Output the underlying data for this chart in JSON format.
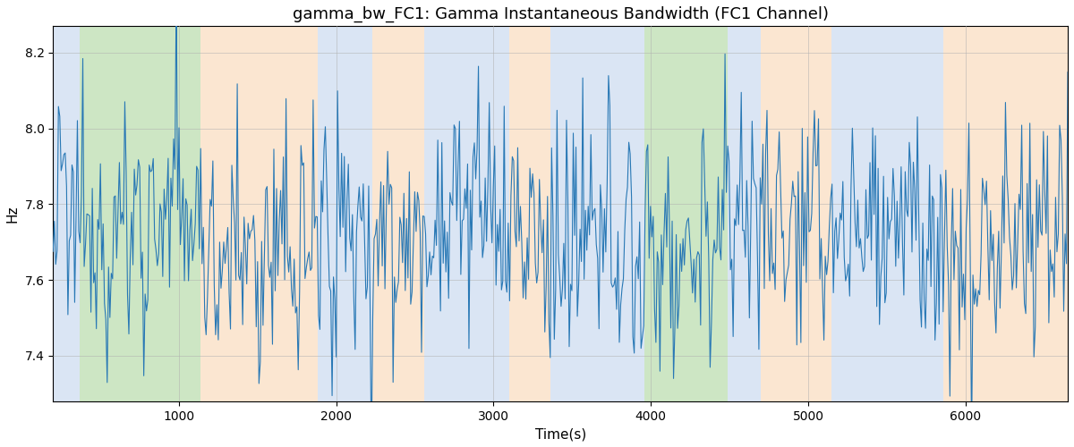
{
  "title": "gamma_bw_FC1: Gamma Instantaneous Bandwidth (FC1 Channel)",
  "xlabel": "Time(s)",
  "ylabel": "Hz",
  "ylim": [
    7.28,
    8.27
  ],
  "xlim": [
    200,
    6650
  ],
  "line_color": "#2878b5",
  "line_width": 0.8,
  "bg_bands": [
    {
      "xstart": 200,
      "xend": 370,
      "color": "#aec6e8",
      "alpha": 0.45
    },
    {
      "xstart": 370,
      "xend": 1140,
      "color": "#90c97c",
      "alpha": 0.45
    },
    {
      "xstart": 1140,
      "xend": 1880,
      "color": "#f7c89b",
      "alpha": 0.45
    },
    {
      "xstart": 1880,
      "xend": 2230,
      "color": "#aec6e8",
      "alpha": 0.45
    },
    {
      "xstart": 2230,
      "xend": 2560,
      "color": "#f7c89b",
      "alpha": 0.45
    },
    {
      "xstart": 2560,
      "xend": 3100,
      "color": "#aec6e8",
      "alpha": 0.45
    },
    {
      "xstart": 3100,
      "xend": 3360,
      "color": "#f7c89b",
      "alpha": 0.45
    },
    {
      "xstart": 3360,
      "xend": 3780,
      "color": "#aec6e8",
      "alpha": 0.45
    },
    {
      "xstart": 3780,
      "xend": 3960,
      "color": "#aec6e8",
      "alpha": 0.45
    },
    {
      "xstart": 3960,
      "xend": 4490,
      "color": "#90c97c",
      "alpha": 0.45
    },
    {
      "xstart": 4490,
      "xend": 4700,
      "color": "#aec6e8",
      "alpha": 0.45
    },
    {
      "xstart": 4700,
      "xend": 5150,
      "color": "#f7c89b",
      "alpha": 0.45
    },
    {
      "xstart": 5150,
      "xend": 5860,
      "color": "#aec6e8",
      "alpha": 0.45
    },
    {
      "xstart": 5860,
      "xend": 6650,
      "color": "#f7c89b",
      "alpha": 0.45
    }
  ],
  "grid_color": "#b0b0b0",
  "grid_alpha": 0.6,
  "grid_linewidth": 0.6,
  "title_fontsize": 13,
  "label_fontsize": 11,
  "tick_fontsize": 10,
  "xticks": [
    1000,
    2000,
    3000,
    4000,
    5000,
    6000
  ],
  "yticks": [
    7.4,
    7.6,
    7.8,
    8.0,
    8.2
  ],
  "seed": 12345,
  "n_points": 750,
  "signal_mean": 7.72,
  "signal_amplitude": 0.13,
  "spike_count": 60,
  "spike_magnitude": 0.28
}
